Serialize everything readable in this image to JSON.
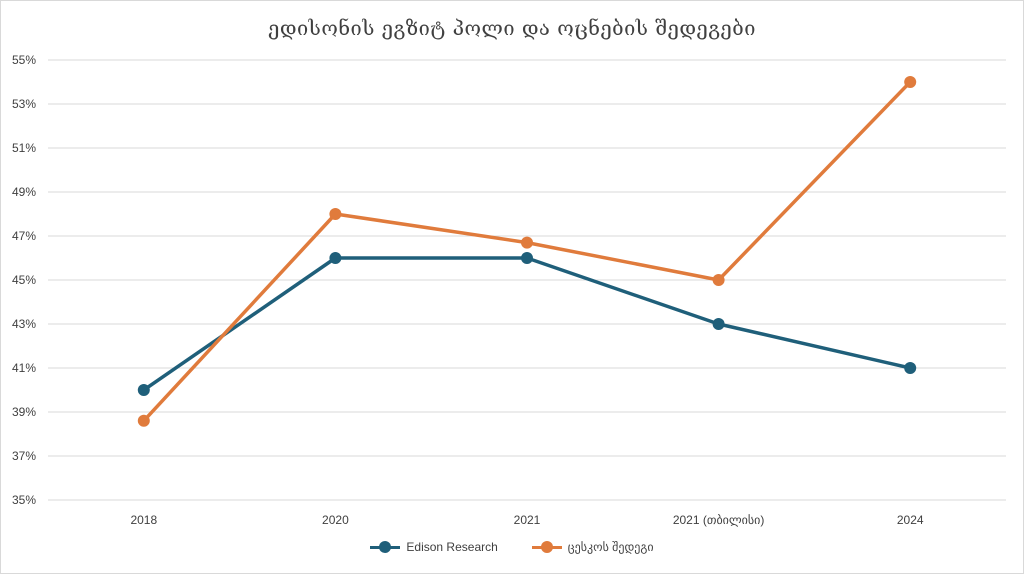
{
  "chart_data": {
    "type": "line",
    "title": "ედისონის ეგზიტ პოლი და ოცნების შედეგები",
    "categories": [
      "2018",
      "2020",
      "2021",
      "2021 (თბილისი)",
      "2024"
    ],
    "series": [
      {
        "name": "Edison Research",
        "color": "#1f5f7a",
        "values": [
          40,
          46,
          46,
          43,
          41
        ]
      },
      {
        "name": "ცესკოს შედეგი",
        "color": "#e07b3c",
        "values": [
          38.6,
          48,
          46.7,
          45,
          54
        ]
      }
    ],
    "ylim": [
      35,
      55
    ],
    "yticks": [
      "35%",
      "37%",
      "39%",
      "41%",
      "43%",
      "45%",
      "47%",
      "49%",
      "51%",
      "53%",
      "55%"
    ],
    "grid": true,
    "legend_position": "bottom"
  }
}
